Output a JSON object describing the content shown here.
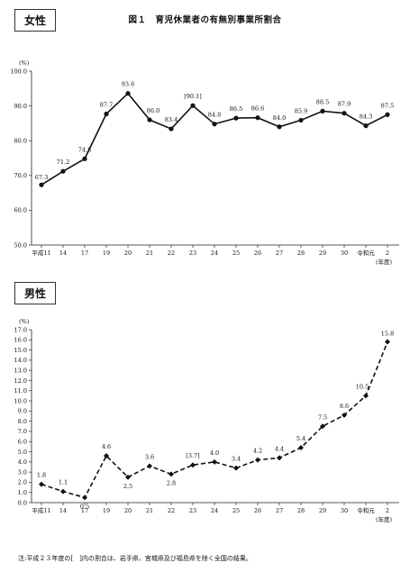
{
  "figure_title": "図１　育児休業者の有無別事業所割合",
  "note": "注:平成２３年度の[　]内の割合は、岩手県、宮城県及び福島県を除く全国の結果。",
  "chart_data": [
    {
      "type": "line",
      "panel_label": "女性",
      "ylabel": "(%)",
      "xlabel": "(年度)",
      "ylim": [
        50,
        100
      ],
      "yticks": [
        "50.0",
        "60.0",
        "70.0",
        "80.0",
        "90.0",
        "100.0"
      ],
      "line_style": "solid",
      "categories": [
        "平成11",
        "14",
        "17",
        "19",
        "20",
        "21",
        "22",
        "23",
        "24",
        "25",
        "26",
        "27",
        "28",
        "29",
        "30",
        "令和元",
        "2"
      ],
      "values": [
        67.3,
        71.2,
        74.8,
        87.7,
        93.6,
        86.0,
        83.4,
        90.1,
        84.8,
        86.5,
        86.6,
        84.0,
        85.9,
        88.5,
        87.9,
        84.3,
        87.5
      ],
      "labels": [
        "67.3",
        "71.2",
        "74.8",
        "87.7",
        "93.6",
        "86.0",
        "83.4",
        "[90.1]",
        "84.8",
        "86.5",
        "86.6",
        "84.0",
        "85.9",
        "88.5",
        "87.9",
        "84.3",
        "87.5"
      ]
    },
    {
      "type": "line",
      "panel_label": "男性",
      "ylabel": "(%)",
      "xlabel": "(年度)",
      "ylim": [
        0,
        17
      ],
      "yticks": [
        "0.0",
        "1.0",
        "2.0",
        "3.0",
        "4.0",
        "5.0",
        "6.0",
        "7.0",
        "8.0",
        "9.0",
        "10.0",
        "11.0",
        "12.0",
        "13.0",
        "14.0",
        "15.0",
        "16.0",
        "17.0"
      ],
      "line_style": "dashed",
      "categories": [
        "平成11",
        "14",
        "17",
        "19",
        "20",
        "21",
        "22",
        "23",
        "24",
        "25",
        "26",
        "27",
        "28",
        "29",
        "30",
        "令和元",
        "2"
      ],
      "values": [
        1.8,
        1.1,
        0.5,
        4.6,
        2.5,
        3.6,
        2.8,
        3.7,
        4.0,
        3.4,
        4.2,
        4.4,
        5.4,
        7.5,
        8.6,
        10.5,
        15.8
      ],
      "labels": [
        "1.8",
        "1.1",
        "0.5",
        "4.6",
        "2.5",
        "3.6",
        "2.8",
        "[3.7]",
        "4.0",
        "3.4",
        "4.2",
        "4.4",
        "5.4",
        "7.5",
        "8.6",
        "10.5",
        "15.8"
      ]
    }
  ]
}
